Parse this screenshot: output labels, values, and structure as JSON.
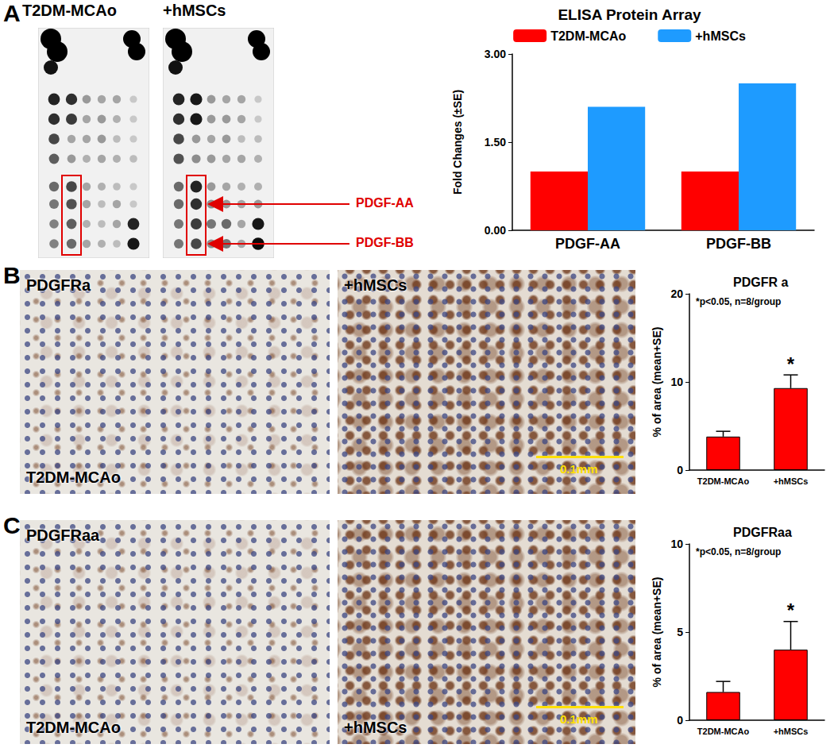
{
  "figure": {
    "panels": [
      {
        "letter": "A",
        "images": [
          {
            "label": "T2DM-MCAo"
          },
          {
            "label": "+hMSCs"
          }
        ],
        "annotations": [
          "PDGF-AA",
          "PDGF-BB"
        ]
      },
      {
        "letter": "B",
        "images": [
          {
            "stain": "PDGFRa",
            "label": "T2DM-MCAo"
          },
          {
            "label": "+hMSCs",
            "scale_bar": "0.1mm"
          }
        ]
      },
      {
        "letter": "C",
        "images": [
          {
            "stain": "PDGFRaa",
            "label": "T2DM-MCAo"
          },
          {
            "label": "+hMSCs",
            "scale_bar": "0.1mm"
          }
        ]
      }
    ]
  },
  "chart_data": [
    {
      "type": "bar",
      "title": "ELISA Protein Array",
      "ylabel": "Fold Changes (±SE)",
      "categories": [
        "PDGF-AA",
        "PDGF-BB"
      ],
      "series": [
        {
          "name": "T2DM-MCAo",
          "color": "#ff0000",
          "values": [
            1.0,
            1.0
          ]
        },
        {
          "name": "+hMSCs",
          "color": "#1e9bff",
          "values": [
            2.1,
            2.5
          ]
        }
      ],
      "ylim": [
        0,
        3
      ],
      "yticks": [
        {
          "value": 0,
          "label": "0.00"
        },
        {
          "value": 1.5,
          "label": "1.50"
        },
        {
          "value": 3,
          "label": "3.00"
        }
      ],
      "grid": false,
      "legend": "top"
    },
    {
      "type": "bar",
      "title": "PDGFR a",
      "ylabel": "% of area (mean+SE)",
      "annotations": [
        "*p<0.05, n=8/group"
      ],
      "categories": [
        "T2DM-MCAo",
        "+hMSCs"
      ],
      "values": [
        3.8,
        9.3
      ],
      "errors": [
        0.6,
        1.5
      ],
      "significance": [
        null,
        "*"
      ],
      "color": "#ff0000",
      "ylim": [
        0,
        20
      ],
      "yticks": [
        0,
        10,
        20
      ],
      "grid": false
    },
    {
      "type": "bar",
      "title": "PDGFRaa",
      "ylabel": "% of area (mean+SE)",
      "annotations": [
        "*p<0.05, n=8/group"
      ],
      "categories": [
        "T2DM-MCAo",
        "+hMSCs"
      ],
      "values": [
        1.6,
        4.0
      ],
      "errors": [
        0.6,
        1.6
      ],
      "significance": [
        null,
        "*"
      ],
      "color": "#ff0000",
      "ylim": [
        0,
        10
      ],
      "yticks": [
        0,
        5,
        10
      ],
      "grid": false
    }
  ]
}
